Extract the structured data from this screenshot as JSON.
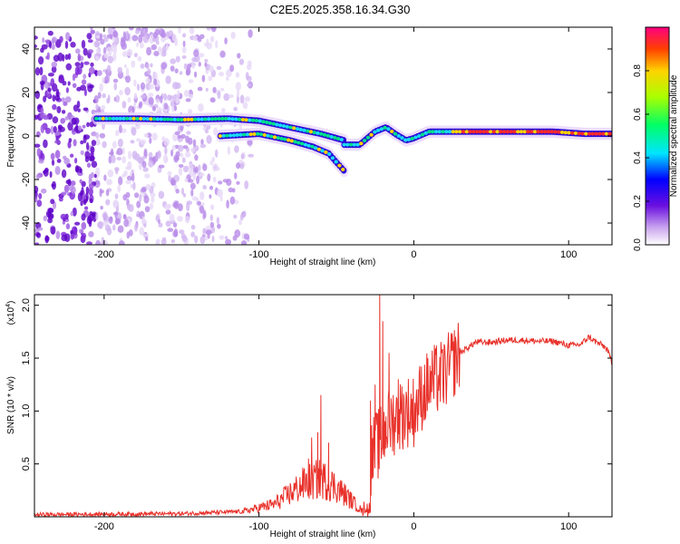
{
  "title": "C2E5.2025.358.16.34.G30",
  "colors": {
    "snr_line": "#e8312a",
    "frame": "#000000"
  },
  "chart_data": [
    {
      "type": "heatmap",
      "title": "C2E5.2025.358.16.34.G30",
      "xlabel": "Height of straight line (km)",
      "ylabel": "Frequency (Hz)",
      "xlim": [
        -245,
        128
      ],
      "ylim": [
        -50,
        50
      ],
      "x_ticks": [
        -200,
        -100,
        0,
        100
      ],
      "y_ticks": [
        -40,
        -20,
        0,
        20,
        40
      ],
      "colorbar": {
        "label": "Normalized spectral amplitude",
        "range": [
          0,
          1
        ],
        "ticks": [
          "0.0",
          "0.2",
          "0.4",
          "0.6",
          "0.8"
        ],
        "tick_values": [
          0,
          0.2,
          0.4,
          0.6,
          0.8
        ],
        "colormap": "rainbow"
      },
      "ridge": {
        "upper_branch": {
          "x": [
            -205,
            -180,
            -150,
            -120,
            -100,
            -80,
            -60,
            -45
          ],
          "f": [
            8,
            8,
            7.5,
            8,
            7,
            4,
            1,
            -2
          ]
        },
        "lower_branch": {
          "x": [
            -125,
            -100,
            -80,
            -65,
            -55,
            -50,
            -45
          ],
          "f": [
            0,
            1,
            -2,
            -5,
            -8,
            -12,
            -16
          ]
        },
        "main": {
          "x": [
            -45,
            -35,
            -25,
            -18,
            -12,
            -5,
            0,
            10,
            30,
            60,
            90,
            110,
            128
          ],
          "f": [
            -4,
            -4,
            2,
            4,
            1,
            -2,
            -1,
            2,
            2,
            2,
            2,
            1,
            1
          ]
        }
      },
      "noise_region_x": [
        -245,
        -105
      ]
    },
    {
      "type": "line",
      "xlabel": "Height of straight line (km)",
      "ylabel": "SNR (10 * v/v)",
      "y_multiplier": "(x10^4)",
      "y_multiplier_base": "(x10",
      "y_multiplier_exp": "4",
      "y_multiplier_close": ")",
      "xlim": [
        -245,
        128
      ],
      "ylim": [
        0,
        2.1
      ],
      "x_ticks": [
        -200,
        -100,
        0,
        100
      ],
      "y_ticks": [
        0.5,
        1.0,
        1.5,
        2.0
      ],
      "y_tick_labels": [
        "0.5",
        "1.0",
        "1.5",
        "2.0"
      ],
      "series": [
        {
          "x": [
            -245,
            -150,
            -110,
            -90,
            -80,
            -70,
            -60,
            -50,
            -40,
            -33,
            -30,
            -25,
            -20,
            -18,
            -15,
            -10,
            -5,
            0,
            5,
            10,
            15,
            20,
            25,
            30,
            35,
            40,
            50,
            60,
            70,
            80,
            90,
            100,
            108,
            113,
            118,
            122,
            125,
            128
          ],
          "y": [
            0.02,
            0.03,
            0.05,
            0.12,
            0.22,
            0.32,
            0.36,
            0.28,
            0.15,
            0.05,
            0.45,
            0.65,
            0.75,
            0.85,
            0.9,
            0.95,
            1.0,
            1.0,
            1.15,
            1.25,
            1.3,
            1.35,
            1.45,
            1.55,
            1.6,
            1.65,
            1.65,
            1.67,
            1.67,
            1.66,
            1.66,
            1.62,
            1.63,
            1.7,
            1.65,
            1.62,
            1.58,
            1.45
          ]
        }
      ],
      "spikes": {
        "x": [
          -68,
          -66,
          -62,
          -60,
          -55,
          -28,
          -25,
          -22,
          -20,
          -18,
          -16,
          -10
        ],
        "y": [
          0.55,
          0.75,
          0.8,
          1.15,
          0.7,
          1.1,
          1.25,
          2.12,
          1.85,
          0.95,
          1.55,
          1.3
        ]
      }
    }
  ]
}
